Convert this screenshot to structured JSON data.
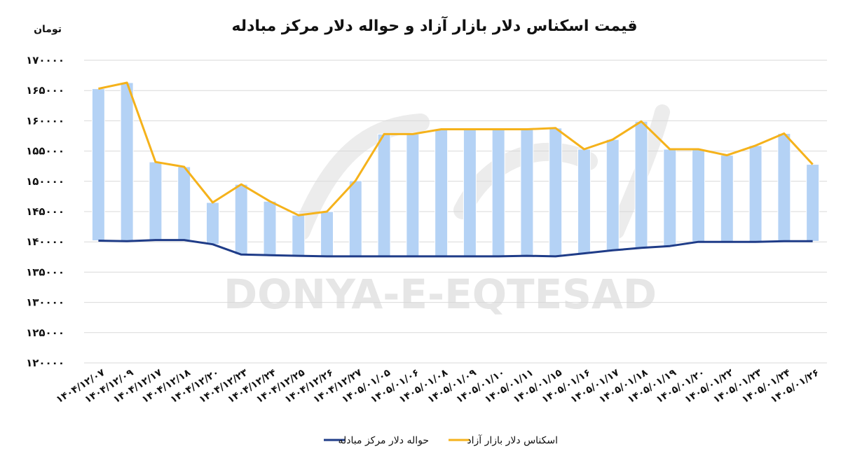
{
  "chart_data": {
    "type": "line",
    "title": "قیمت اسکناس دلار بازار آزاد و حواله دلار مرکز مبادله",
    "ylabel": "تومان",
    "ylim": [
      120000,
      170000
    ],
    "ytick_values": [
      120000,
      125000,
      130000,
      135000,
      140000,
      145000,
      150000,
      155000,
      160000,
      165000,
      170000
    ],
    "ytick_labels": [
      "۱۲۰۰۰۰",
      "۱۲۵۰۰۰",
      "۱۳۰۰۰۰",
      "۱۳۵۰۰۰",
      "۱۴۰۰۰۰",
      "۱۴۵۰۰۰",
      "۱۵۰۰۰۰",
      "۱۵۵۰۰۰",
      "۱۶۰۰۰۰",
      "۱۶۵۰۰۰",
      "۱۷۰۰۰۰"
    ],
    "categories": [
      "۱۴۰۴/۱۲/۰۷",
      "۱۴۰۴/۱۲/۰۹",
      "۱۴۰۴/۱۲/۱۷",
      "۱۴۰۴/۱۲/۱۸",
      "۱۴۰۴/۱۲/۲۰",
      "۱۴۰۴/۱۲/۲۳",
      "۱۴۰۴/۱۲/۲۴",
      "۱۴۰۴/۱۲/۲۵",
      "۱۴۰۴/۱۲/۲۶",
      "۱۴۰۴/۱۲/۲۷",
      "۱۴۰۵/۰۱/۰۵",
      "۱۴۰۵/۰۱/۰۶",
      "۱۴۰۵/۰۱/۰۸",
      "۱۴۰۵/۰۱/۰۹",
      "۱۴۰۵/۰۱/۱۰",
      "۱۴۰۵/۰۱/۱۱",
      "۱۴۰۵/۰۱/۱۵",
      "۱۴۰۵/۰۱/۱۶",
      "۱۴۰۵/۰۱/۱۷",
      "۱۴۰۵/۰۱/۱۸",
      "۱۴۰۵/۰۱/۱۹",
      "۱۴۰۵/۰۱/۲۰",
      "۱۴۰۵/۰۱/۲۲",
      "۱۴۰۵/۰۱/۲۳",
      "۱۴۰۵/۰۱/۲۴",
      "۱۴۰۵/۰۱/۲۶"
    ],
    "series": [
      {
        "name": "اسکناس دلار بازار آزاد",
        "color": "#f5b21b",
        "values": [
          165300,
          166300,
          153200,
          152400,
          146500,
          149500,
          146700,
          144400,
          145000,
          150100,
          157800,
          157800,
          158600,
          158600,
          158600,
          158600,
          158800,
          155300,
          156900,
          159900,
          155300,
          155300,
          154300,
          155900,
          157900,
          152800
        ]
      },
      {
        "name": "حواله دلار مرکز مبادله",
        "color": "#1f3c88",
        "values": [
          140200,
          140100,
          140300,
          140300,
          139600,
          137900,
          137800,
          137700,
          137600,
          137600,
          137600,
          137600,
          137600,
          137600,
          137600,
          137700,
          137600,
          138100,
          138600,
          139000,
          139300,
          140000,
          140000,
          140000,
          140100,
          140100
        ]
      }
    ],
    "bars": {
      "description_from_series": "range between the two series",
      "color": "#b4d2f5"
    },
    "legend_position": "bottom",
    "grid": true,
    "watermark": "DONYA-E-EQTESAD"
  }
}
